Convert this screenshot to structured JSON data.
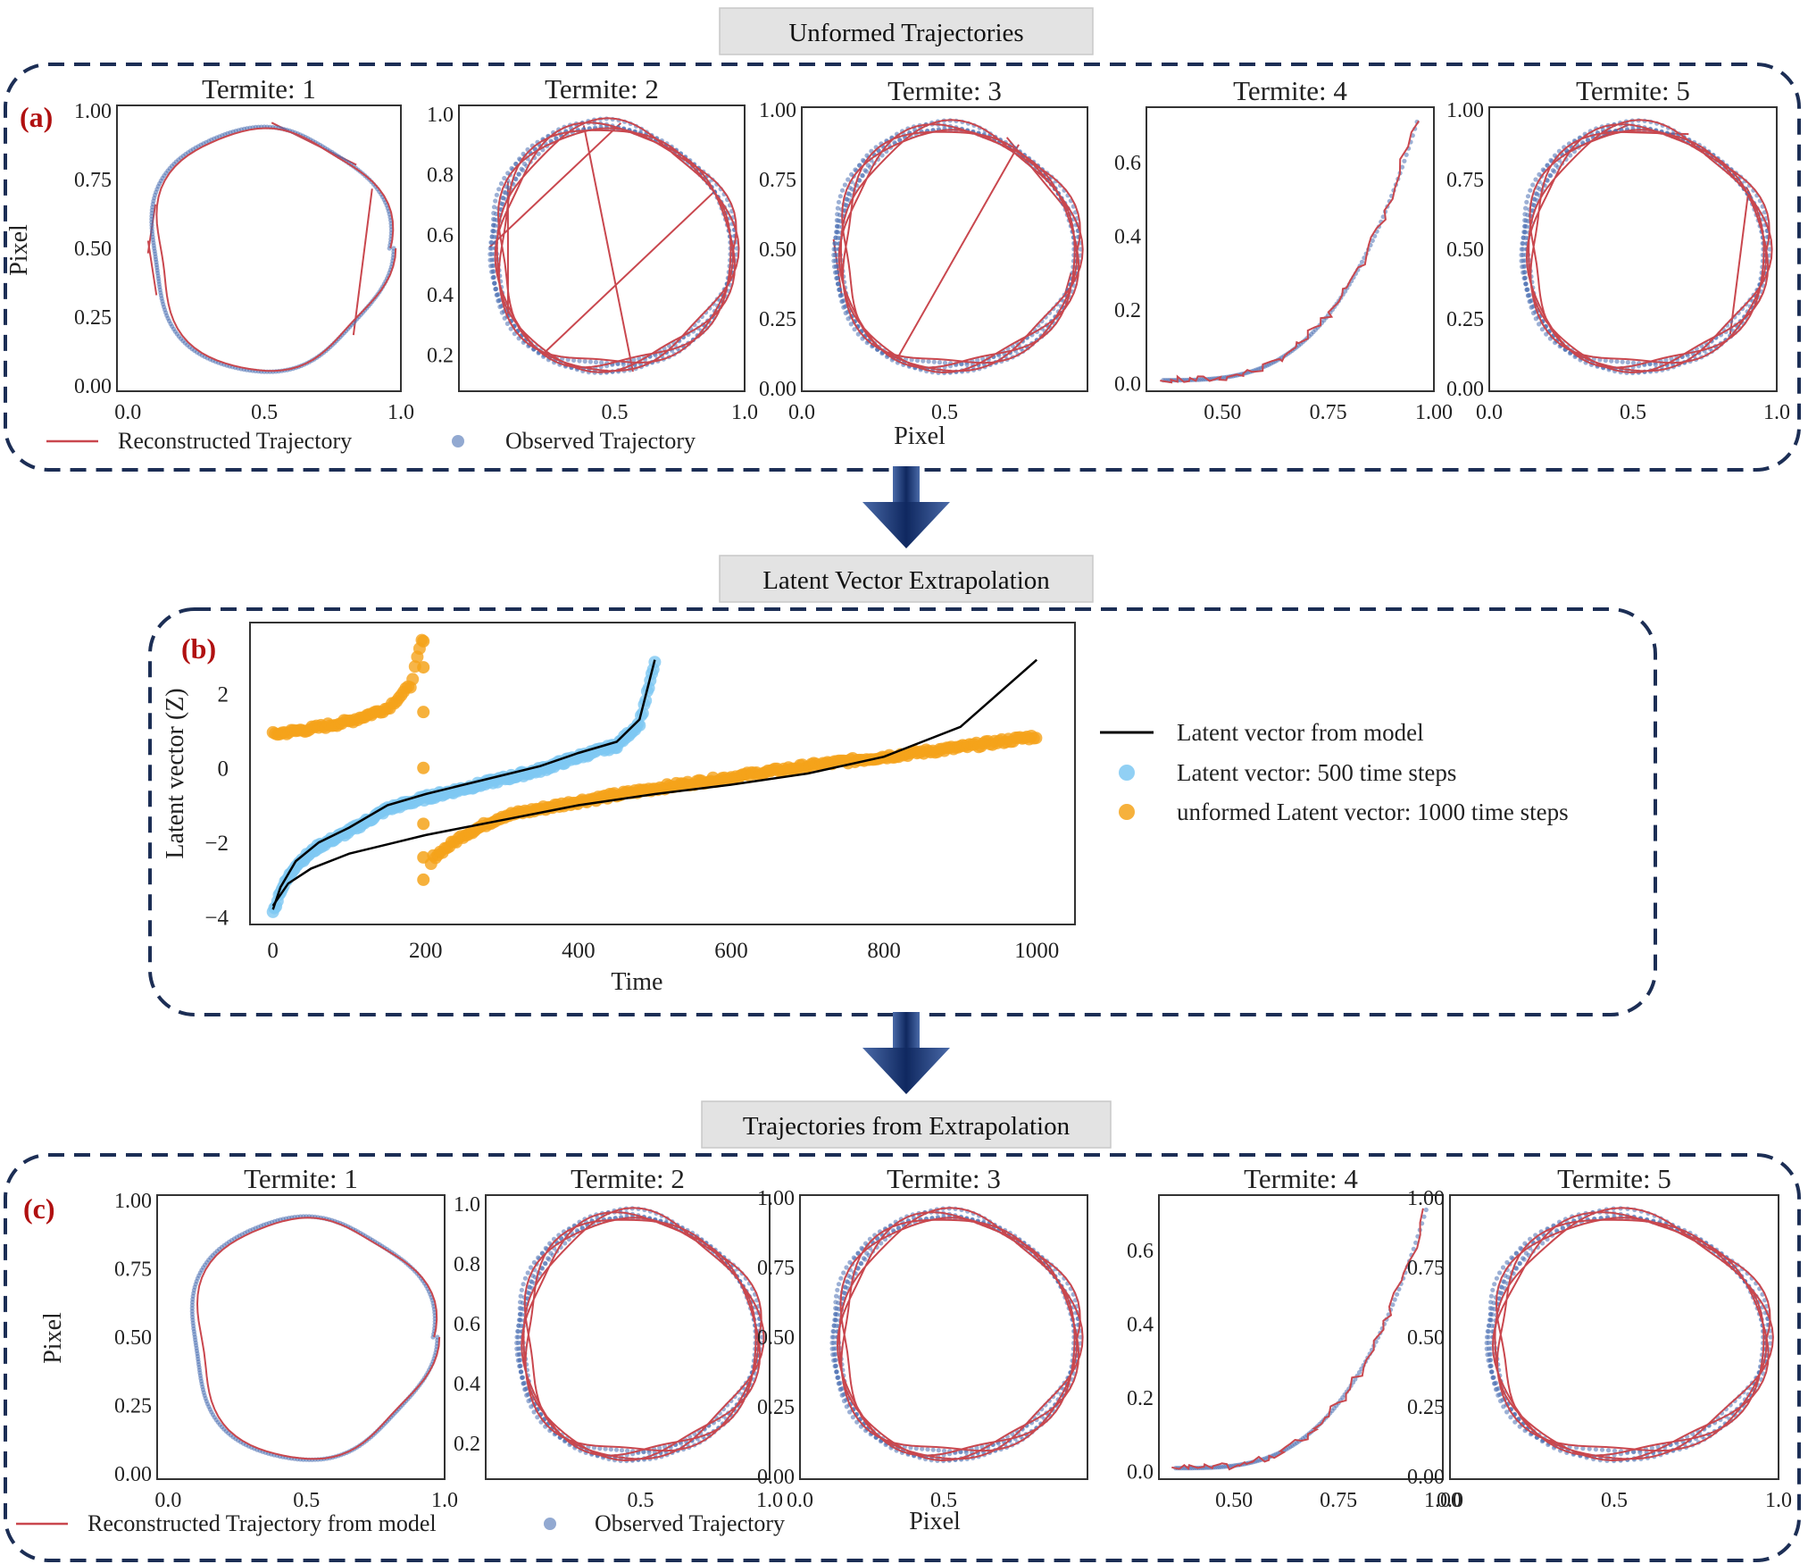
{
  "colors": {
    "reconstructed": "#c9474e",
    "observed": "#4a6fb3",
    "latent_model": "#000000",
    "latent_500": "#7ec8f2",
    "latent_1000": "#f5a31a",
    "panel_border": "#1c2e55",
    "panel_letter": "#b01010",
    "header_bg": "#e3e3e3",
    "arrow": "#1c3b7a"
  },
  "panels": {
    "a": {
      "header": "Unformed Trajectories",
      "letter": "(a)",
      "legend": [
        "Reconstructed Trajectory",
        "Observed Trajectory"
      ],
      "ylabel": "Pixel",
      "xlabel": "Pixel"
    },
    "b": {
      "header": "Latent Vector Extrapolation",
      "letter": "(b)"
    },
    "c": {
      "header": "Trajectories from Extrapolation",
      "letter": "(c)",
      "legend": [
        "Reconstructed Trajectory from model",
        "Observed Trajectory"
      ],
      "ylabel": "Pixel",
      "xlabel": "Pixel"
    }
  },
  "chart_data": [
    {
      "type": "line",
      "panel": "a",
      "subplots": [
        {
          "title": "Termite: 1",
          "xticks": [
            "0.0",
            "0.5",
            "1.0"
          ],
          "yticks": [
            "0.00",
            "0.25",
            "0.50",
            "0.75",
            "1.00"
          ],
          "xlim": [
            -0.04,
            1.0
          ],
          "ylim": [
            -0.02,
            1.02
          ],
          "shape": "circle_jumps"
        },
        {
          "title": "Termite: 2",
          "xticks": [
            "0.5",
            "1.0"
          ],
          "yticks": [
            "0.2",
            "0.4",
            "0.6",
            "0.8",
            "1.0"
          ],
          "xlim": [
            -0.1,
            1.0
          ],
          "ylim": [
            0.08,
            1.03
          ],
          "shape": "circle_jumps"
        },
        {
          "title": "Termite: 3",
          "xticks": [
            "0.0",
            "0.5"
          ],
          "yticks": [
            "0.00",
            "0.25",
            "0.50",
            "0.75",
            "1.00"
          ],
          "xlim": [
            0.0,
            1.0
          ],
          "ylim": [
            -0.01,
            1.01
          ],
          "shape": "circle_jumps"
        },
        {
          "title": "Termite: 4",
          "xticks": [
            "0.50",
            "0.75",
            "1.00"
          ],
          "yticks": [
            "0.0",
            "0.2",
            "0.4",
            "0.6"
          ],
          "xlim": [
            0.32,
            1.0
          ],
          "ylim": [
            -0.02,
            0.75
          ],
          "shape": "curve"
        },
        {
          "title": "Termite: 5",
          "xticks": [
            "0.0",
            "0.5",
            "1.0"
          ],
          "yticks": [
            "0.00",
            "0.25",
            "0.50",
            "0.75",
            "1.00"
          ],
          "xlim": [
            0.0,
            1.0
          ],
          "ylim": [
            -0.01,
            1.01
          ],
          "shape": "circle_jumps"
        }
      ]
    },
    {
      "type": "line",
      "panel": "b",
      "xlabel": "Time",
      "ylabel": "Latent vector (Z)",
      "xlim": [
        -30,
        1050
      ],
      "ylim": [
        -4.2,
        3.9
      ],
      "xticks": [
        "0",
        "200",
        "400",
        "600",
        "800",
        "1000"
      ],
      "yticks": [
        "−4",
        "−2",
        "0",
        "2"
      ],
      "series": [
        {
          "name": "Latent vector from model",
          "kind": "line",
          "x": [
            0,
            20,
            50,
            100,
            150,
            200,
            250,
            300,
            400,
            500,
            600,
            700,
            800,
            900,
            1000
          ],
          "y": [
            -3.7,
            -3.1,
            -2.7,
            -2.3,
            -2.05,
            -1.8,
            -1.6,
            -1.4,
            -1.0,
            -0.7,
            -0.45,
            -0.15,
            0.3,
            1.1,
            2.9
          ]
        },
        {
          "name": "Latent vector: 500 time steps",
          "kind": "scatter",
          "x": [
            0,
            10,
            30,
            60,
            100,
            150,
            200,
            250,
            300,
            350,
            400,
            450,
            480,
            500
          ],
          "y": [
            -3.9,
            -3.3,
            -2.6,
            -2.1,
            -1.7,
            -1.1,
            -0.8,
            -0.55,
            -0.3,
            -0.05,
            0.3,
            0.6,
            1.2,
            2.8
          ]
        },
        {
          "name": "unformed Latent vector: 1000 time steps",
          "kind": "scatter",
          "x": [
            0,
            50,
            100,
            150,
            180,
            195,
            200,
            210,
            250,
            300,
            400,
            500,
            600,
            700,
            800,
            900,
            1000
          ],
          "y": [
            0.9,
            1.05,
            1.25,
            1.6,
            2.2,
            3.4,
            -3.0,
            -2.4,
            -1.8,
            -1.3,
            -0.9,
            -0.55,
            -0.25,
            0.05,
            0.3,
            0.55,
            0.85
          ]
        }
      ],
      "legend_placement": "right, outside"
    },
    {
      "type": "line",
      "panel": "c",
      "subplots": [
        {
          "title": "Termite: 1",
          "xticks": [
            "0.0",
            "0.5",
            "1.0"
          ],
          "yticks": [
            "0.00",
            "0.25",
            "0.50",
            "0.75",
            "1.00"
          ],
          "xlim": [
            -0.04,
            1.0
          ],
          "ylim": [
            -0.02,
            1.02
          ],
          "shape": "circle"
        },
        {
          "title": "Termite: 2",
          "xticks": [
            "0.5",
            "1.0"
          ],
          "yticks": [
            "0.2",
            "0.4",
            "0.6",
            "0.8",
            "1.0"
          ],
          "xlim": [
            -0.1,
            1.0
          ],
          "ylim": [
            0.08,
            1.03
          ],
          "shape": "circle"
        },
        {
          "title": "Termite: 3",
          "xticks": [
            "0.0",
            "0.5"
          ],
          "yticks": [
            "0.00",
            "0.25",
            "0.50",
            "0.75",
            "1.00"
          ],
          "xlim": [
            0.0,
            1.0
          ],
          "ylim": [
            -0.01,
            1.01
          ],
          "shape": "circle"
        },
        {
          "title": "Termite: 4",
          "xticks": [
            "0.50",
            "0.75",
            "1.00"
          ],
          "yticks": [
            "0.0",
            "0.2",
            "0.4",
            "0.6"
          ],
          "xlim": [
            0.32,
            1.0
          ],
          "ylim": [
            -0.02,
            0.75
          ],
          "shape": "curve"
        },
        {
          "title": "Termite: 5",
          "xticks": [
            "0.0",
            "0.5",
            "1.0"
          ],
          "yticks": [
            "0.00",
            "0.25",
            "0.50",
            "0.75",
            "1.00"
          ],
          "xlim": [
            0.0,
            1.0
          ],
          "ylim": [
            -0.01,
            1.01
          ],
          "shape": "circle"
        }
      ]
    }
  ]
}
